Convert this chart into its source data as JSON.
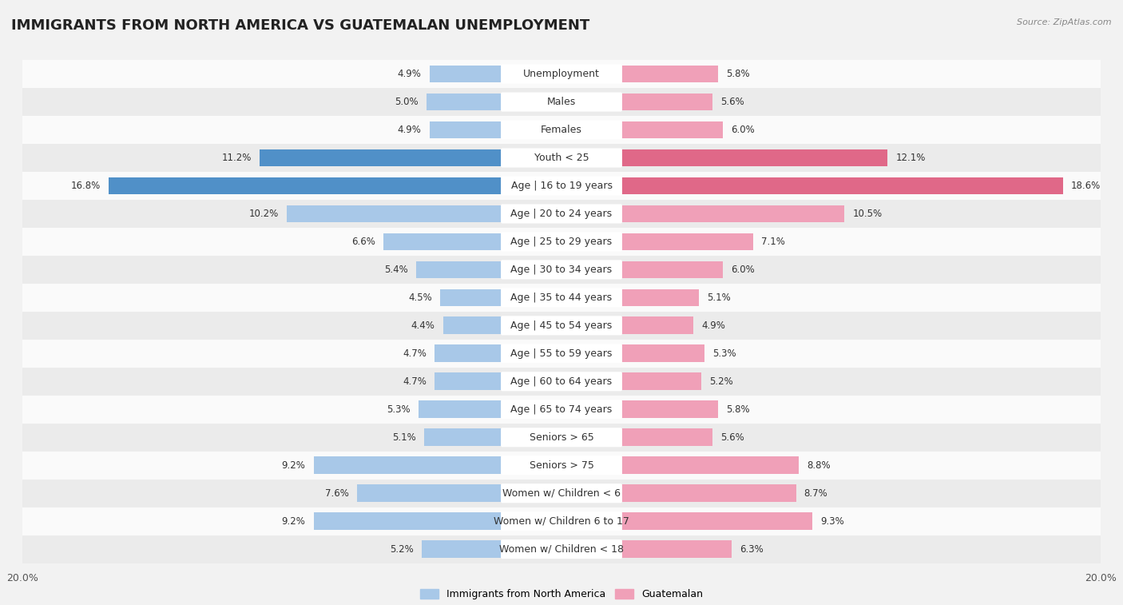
{
  "title": "IMMIGRANTS FROM NORTH AMERICA VS GUATEMALAN UNEMPLOYMENT",
  "source": "Source: ZipAtlas.com",
  "categories": [
    "Unemployment",
    "Males",
    "Females",
    "Youth < 25",
    "Age | 16 to 19 years",
    "Age | 20 to 24 years",
    "Age | 25 to 29 years",
    "Age | 30 to 34 years",
    "Age | 35 to 44 years",
    "Age | 45 to 54 years",
    "Age | 55 to 59 years",
    "Age | 60 to 64 years",
    "Age | 65 to 74 years",
    "Seniors > 65",
    "Seniors > 75",
    "Women w/ Children < 6",
    "Women w/ Children 6 to 17",
    "Women w/ Children < 18"
  ],
  "left_values": [
    4.9,
    5.0,
    4.9,
    11.2,
    16.8,
    10.2,
    6.6,
    5.4,
    4.5,
    4.4,
    4.7,
    4.7,
    5.3,
    5.1,
    9.2,
    7.6,
    9.2,
    5.2
  ],
  "right_values": [
    5.8,
    5.6,
    6.0,
    12.1,
    18.6,
    10.5,
    7.1,
    6.0,
    5.1,
    4.9,
    5.3,
    5.2,
    5.8,
    5.6,
    8.8,
    8.7,
    9.3,
    6.3
  ],
  "left_color": "#a8c8e8",
  "right_color": "#f0a0b8",
  "left_highlight_color": "#5090c8",
  "right_highlight_color": "#e06888",
  "highlight_rows": [
    3,
    4
  ],
  "axis_max": 20.0,
  "bar_height": 0.62,
  "background_color": "#f2f2f2",
  "row_bg_light": "#fafafa",
  "row_bg_dark": "#ebebeb",
  "legend_left_label": "Immigrants from North America",
  "legend_right_label": "Guatemalan",
  "title_fontsize": 13,
  "label_fontsize": 9,
  "value_fontsize": 8.5,
  "axis_label_fontsize": 9
}
